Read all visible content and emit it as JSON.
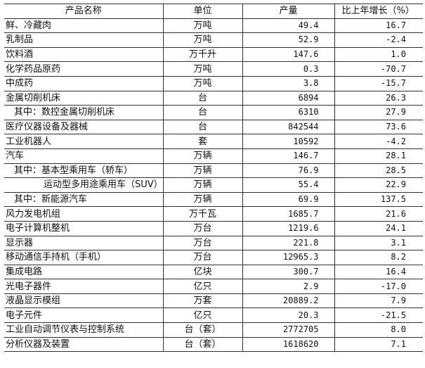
{
  "headers": {
    "name": "产品名称",
    "unit": "单位",
    "output": "产量",
    "growth": "比上年增长（%）"
  },
  "rows": [
    {
      "name": "鲜、冷藏肉",
      "unit": "万吨",
      "output": "49.4",
      "growth": "16.7",
      "indent": 0
    },
    {
      "name": "乳制品",
      "unit": "万吨",
      "output": "52.9",
      "growth": "-2.4",
      "indent": 0
    },
    {
      "name": "饮料酒",
      "unit": "万千升",
      "output": "147.6",
      "growth": "1.0",
      "indent": 0
    },
    {
      "name": "化学药品原药",
      "unit": "万吨",
      "output": "0.3",
      "growth": "-70.7",
      "indent": 0
    },
    {
      "name": "中成药",
      "unit": "万吨",
      "output": "3.8",
      "growth": "-15.7",
      "indent": 0
    },
    {
      "name": "金属切削机床",
      "unit": "台",
      "output": "6894",
      "growth": "26.3",
      "indent": 0
    },
    {
      "name": "其中：数控金属切削机床",
      "unit": "台",
      "output": "6310",
      "growth": "27.9",
      "indent": 1
    },
    {
      "name": "医疗仪器设备及器械",
      "unit": "台",
      "output": "842544",
      "growth": "73.6",
      "indent": 0
    },
    {
      "name": "工业机器人",
      "unit": "套",
      "output": "10592",
      "growth": "-4.2",
      "indent": 0
    },
    {
      "name": "汽车",
      "unit": "万辆",
      "output": "146.7",
      "growth": "28.1",
      "indent": 0
    },
    {
      "name": "其中：基本型乘用车（轿车）",
      "unit": "万辆",
      "output": "76.9",
      "growth": "28.5",
      "indent": 1
    },
    {
      "name": "运动型多用途乘用车（SUV）",
      "unit": "万辆",
      "output": "55.4",
      "growth": "22.9",
      "indent": 2
    },
    {
      "name": "其中：新能源汽车",
      "unit": "万辆",
      "output": "69.9",
      "growth": "137.5",
      "indent": 1
    },
    {
      "name": "风力发电机组",
      "unit": "万千瓦",
      "output": "1685.7",
      "growth": "21.6",
      "indent": 0
    },
    {
      "name": "电子计算机整机",
      "unit": "万台",
      "output": "1219.6",
      "growth": "24.1",
      "indent": 0
    },
    {
      "name": "显示器",
      "unit": "万台",
      "output": "221.8",
      "growth": "3.1",
      "indent": 0
    },
    {
      "name": "移动通信手持机（手机）",
      "unit": "万台",
      "output": "12965.3",
      "growth": "8.2",
      "indent": 0
    },
    {
      "name": "集成电路",
      "unit": "亿块",
      "output": "300.7",
      "growth": "16.4",
      "indent": 0
    },
    {
      "name": "光电子器件",
      "unit": "亿只",
      "output": "2.9",
      "growth": "-17.0",
      "indent": 0
    },
    {
      "name": "液晶显示模组",
      "unit": "万套",
      "output": "20889.2",
      "growth": "7.9",
      "indent": 0
    },
    {
      "name": "电子元件",
      "unit": "亿只",
      "output": "20.3",
      "growth": "-21.5",
      "indent": 0
    },
    {
      "name": "工业自动调节仪表与控制系统",
      "unit": "台（套）",
      "output": "2772705",
      "growth": "8.0",
      "indent": 0
    },
    {
      "name": "分析仪器及装置",
      "unit": "台（套）",
      "output": "1618620",
      "growth": "7.1",
      "indent": 0
    }
  ]
}
